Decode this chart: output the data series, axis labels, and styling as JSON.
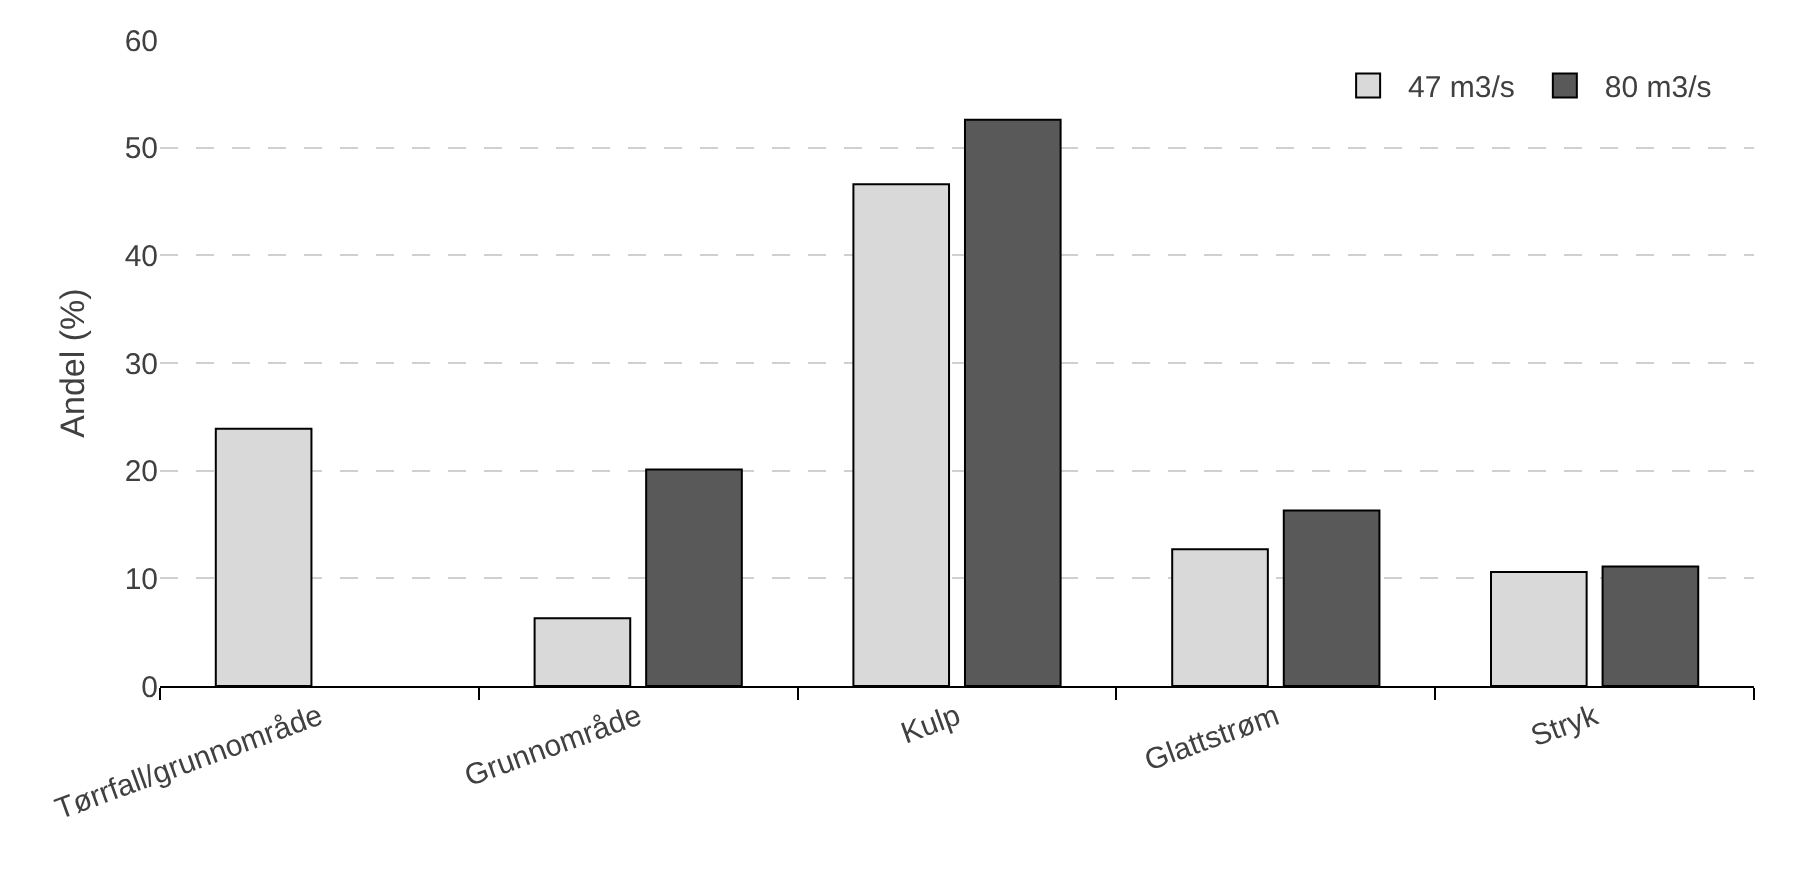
{
  "chart_data": {
    "type": "bar",
    "ylabel": "Andel (%)",
    "categories": [
      "Tørrfall/grunnområde",
      "Grunnområde",
      "Kulp",
      "Glattstrøm",
      "Stryk"
    ],
    "series": [
      {
        "name": "47 m3/s",
        "color": "#d9d9d9",
        "values": [
          23.9,
          6.3,
          46.6,
          12.7,
          10.6
        ]
      },
      {
        "name": "80 m3/s",
        "color": "#595959",
        "values": [
          null,
          20.1,
          52.6,
          16.3,
          11.1
        ]
      }
    ],
    "ylim": [
      0,
      60
    ],
    "yticks": [
      0,
      10,
      20,
      30,
      40,
      50,
      60
    ],
    "grid": "y",
    "legend": "top right"
  }
}
